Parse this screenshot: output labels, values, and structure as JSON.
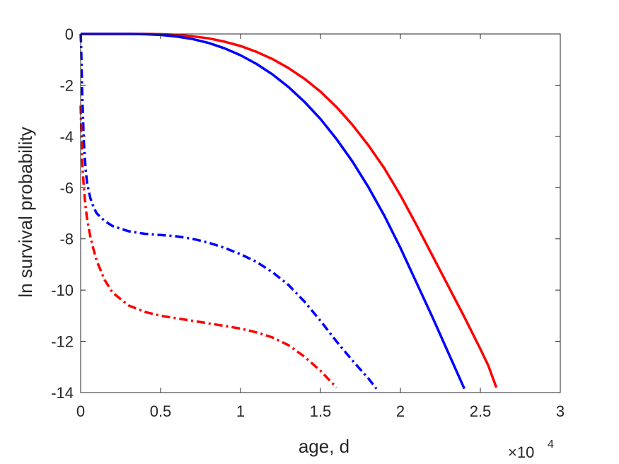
{
  "chart_data": {
    "type": "line",
    "xlabel": "age, d",
    "ylabel": "ln survival probability",
    "x_exponent_label": "×10",
    "x_exponent_power": "4",
    "xlim": [
      0,
      30000
    ],
    "ylim": [
      -14,
      0
    ],
    "x_tick_values": [
      0,
      5000,
      10000,
      15000,
      20000,
      25000,
      30000
    ],
    "x_tick_labels": [
      "0",
      "0.5",
      "1",
      "1.5",
      "2",
      "2.5",
      "3"
    ],
    "y_ticks": [
      0,
      -2,
      -4,
      -6,
      -8,
      -10,
      -12,
      -14
    ],
    "y_tick_labels": [
      "0",
      "-2",
      "-4",
      "-6",
      "-8",
      "-10",
      "-12",
      "-14"
    ],
    "grid": false,
    "series": [
      {
        "color": "#ff0000",
        "style": "solid",
        "x": [
          0,
          1000,
          2000,
          3000,
          4000,
          5000,
          6000,
          7000,
          8000,
          9000,
          10000,
          11000,
          12000,
          13000,
          14000,
          15000,
          16000,
          17000,
          18000,
          19000,
          20000,
          21000,
          22000,
          23000,
          24000,
          25000,
          25500,
          26000
        ],
        "y": [
          0,
          0,
          0,
          0,
          0,
          -0.01,
          -0.04,
          -0.09,
          -0.17,
          -0.3,
          -0.47,
          -0.7,
          -0.98,
          -1.33,
          -1.75,
          -2.25,
          -2.85,
          -3.55,
          -4.35,
          -5.25,
          -6.3,
          -7.45,
          -8.65,
          -9.85,
          -11.05,
          -12.3,
          -12.95,
          -13.8
        ]
      },
      {
        "color": "#0000ff",
        "style": "solid",
        "x": [
          0,
          1000,
          2000,
          3000,
          4000,
          5000,
          6000,
          7000,
          8000,
          9000,
          10000,
          11000,
          12000,
          13000,
          14000,
          15000,
          16000,
          17000,
          18000,
          19000,
          20000,
          21000,
          22000,
          23000,
          23500,
          24000
        ],
        "y": [
          0,
          0,
          0,
          0,
          -0.01,
          -0.04,
          -0.1,
          -0.2,
          -0.35,
          -0.56,
          -0.83,
          -1.17,
          -1.58,
          -2.07,
          -2.65,
          -3.32,
          -4.1,
          -4.98,
          -5.98,
          -7.1,
          -8.35,
          -9.7,
          -11.05,
          -12.45,
          -13.15,
          -13.85
        ]
      },
      {
        "color": "#0000ff",
        "style": "dash-dot",
        "x": [
          0,
          20,
          50,
          100,
          200,
          300,
          400,
          600,
          800,
          1000,
          1500,
          2000,
          3000,
          4000,
          5000,
          6000,
          7000,
          8000,
          9000,
          10000,
          11000,
          12000,
          13000,
          14000,
          15000,
          16000,
          17000,
          18000,
          18500
        ],
        "y": [
          0,
          -0.3,
          -1,
          -2.4,
          -4.2,
          -5.2,
          -5.8,
          -6.4,
          -6.75,
          -7.0,
          -7.3,
          -7.5,
          -7.7,
          -7.8,
          -7.85,
          -7.9,
          -8.0,
          -8.15,
          -8.35,
          -8.6,
          -8.9,
          -9.3,
          -9.8,
          -10.45,
          -11.2,
          -12.0,
          -12.75,
          -13.45,
          -13.85
        ]
      },
      {
        "color": "#ff0000",
        "style": "dash-dot",
        "x": [
          0,
          50,
          100,
          200,
          300,
          400,
          600,
          800,
          1000,
          1500,
          2000,
          3000,
          4000,
          5000,
          6000,
          7000,
          8000,
          9000,
          10000,
          11000,
          12000,
          13000,
          14000,
          15000,
          16000
        ],
        "y": [
          -2.8,
          -4.0,
          -5.0,
          -6.0,
          -6.7,
          -7.2,
          -7.9,
          -8.4,
          -8.85,
          -9.6,
          -10.1,
          -10.6,
          -10.85,
          -11.0,
          -11.1,
          -11.2,
          -11.3,
          -11.4,
          -11.5,
          -11.65,
          -11.85,
          -12.15,
          -12.6,
          -13.15,
          -13.8
        ]
      }
    ]
  }
}
